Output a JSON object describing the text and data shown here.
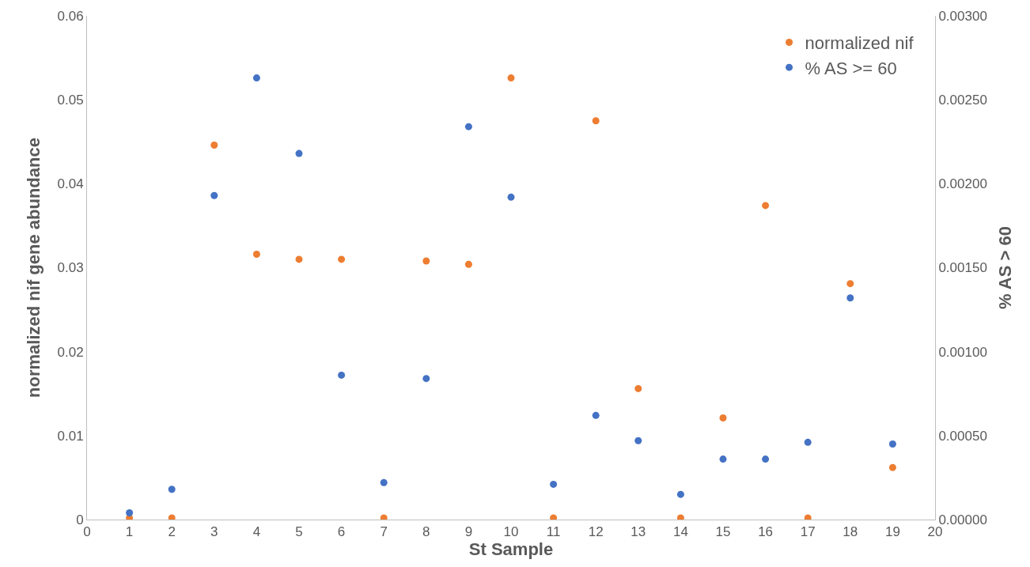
{
  "chart_data": {
    "type": "scatter",
    "xlabel": "St Sample",
    "ylabel": "normalized nif gene abundance",
    "y2label": "% AS > 60",
    "x": [
      1,
      2,
      3,
      4,
      5,
      6,
      7,
      8,
      9,
      10,
      11,
      12,
      13,
      14,
      15,
      16,
      17,
      18,
      19
    ],
    "series": [
      {
        "name": "normalized nif",
        "color": "#ed7d31",
        "values": [
          0.0002,
          0.0002,
          0.0446,
          0.0316,
          0.031,
          0.031,
          0.0002,
          0.0308,
          0.0304,
          0.0526,
          0.0002,
          0.0475,
          0.0156,
          0.0002,
          0.0121,
          0.0374,
          0.0002,
          0.0281,
          0.0062
        ]
      },
      {
        "name": "% AS >= 60",
        "color": "#4472c4",
        "axis": "y2",
        "values": [
          4e-05,
          0.00018,
          0.00193,
          0.00263,
          0.00218,
          0.00086,
          0.00022,
          0.00084,
          0.00234,
          0.00192,
          0.00021,
          0.00062,
          0.00047,
          0.00015,
          0.00036,
          0.00036,
          0.00046,
          0.00132,
          0.00045
        ]
      }
    ],
    "xlim": [
      0,
      20
    ],
    "xticks": [
      0,
      1,
      2,
      3,
      4,
      5,
      6,
      7,
      8,
      9,
      10,
      11,
      12,
      13,
      14,
      15,
      16,
      17,
      18,
      19,
      20
    ],
    "ylim": [
      0,
      0.06
    ],
    "yticks": [
      0,
      0.01,
      0.02,
      0.03,
      0.04,
      0.05,
      0.06
    ],
    "y2lim": [
      0,
      0.003
    ],
    "y2ticks": [
      {
        "value": 0,
        "label": "0.00000"
      },
      {
        "value": 0.0005,
        "label": "0.00050"
      },
      {
        "value": 0.001,
        "label": "0.00100"
      },
      {
        "value": 0.0015,
        "label": "0.00150"
      },
      {
        "value": 0.002,
        "label": "0.00200"
      },
      {
        "value": 0.0025,
        "label": "0.00250"
      },
      {
        "value": 0.003,
        "label": "0.00300"
      }
    ],
    "legend": "top right",
    "marker": "circle"
  }
}
